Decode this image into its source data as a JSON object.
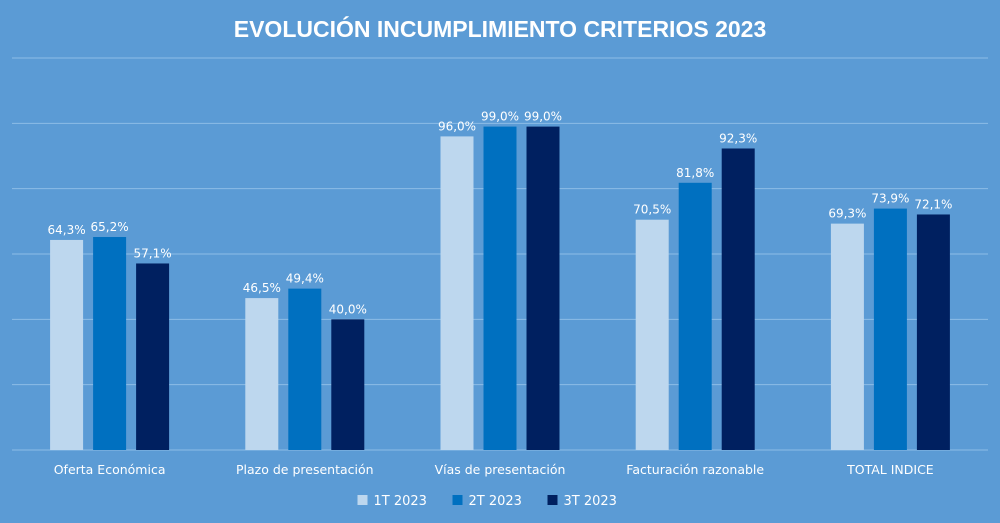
{
  "chart_data": {
    "type": "bar",
    "title": "EVOLUCIÓN INCUMPLIMIENTO CRITERIOS 2023",
    "categories": [
      "Oferta Económica",
      "Plazo de presentación",
      "Vías de presentación",
      "Facturación razonable",
      "TOTAL INDICE"
    ],
    "series": [
      {
        "name": "1T 2023",
        "color": "#bdd7ee",
        "values": [
          64.3,
          46.5,
          96.0,
          70.5,
          69.3
        ],
        "labels": [
          "64,3%",
          "46,5%",
          "96,0%",
          "70,5%",
          "69,3%"
        ]
      },
      {
        "name": "2T 2023",
        "color": "#0070c0",
        "values": [
          65.2,
          49.4,
          99.0,
          81.8,
          73.9
        ],
        "labels": [
          "65,2%",
          "49,4%",
          "99,0%",
          "81,8%",
          "73,9%"
        ]
      },
      {
        "name": "3T 2023",
        "color": "#002060",
        "values": [
          57.1,
          40.0,
          99.0,
          92.3,
          72.1
        ],
        "labels": [
          "57,1%",
          "40,0%",
          "99,0%",
          "92,3%",
          "72,1%"
        ]
      }
    ],
    "ylim": [
      0,
      120
    ],
    "grid": true,
    "xlabel": "",
    "ylabel": "",
    "legend": "bottom-center"
  }
}
